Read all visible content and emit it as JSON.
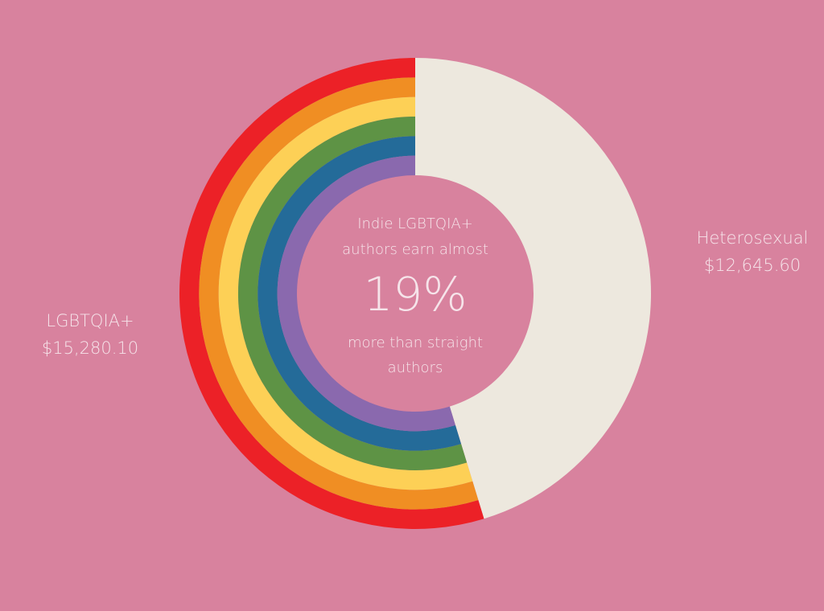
{
  "chart_data": {
    "type": "donut",
    "categories": [
      "LGBTQIA+",
      "Heterosexual"
    ],
    "values": [
      15280.1,
      12645.6
    ],
    "value_labels": [
      "$15,280.10",
      "$12,645.60"
    ],
    "colors": [
      [
        "#ec2127",
        "#f08e23",
        "#fdd056",
        "#5e9345",
        "#246b99",
        "#8a69ae"
      ],
      [
        "#ede8de"
      ]
    ],
    "center_text_top": [
      "Indie LGBTQIA+",
      "authors earn almost"
    ],
    "center_value": {
      "value": 19,
      "label": "19%"
    },
    "center_text_bottom": [
      "more than straight",
      "authors"
    ]
  }
}
